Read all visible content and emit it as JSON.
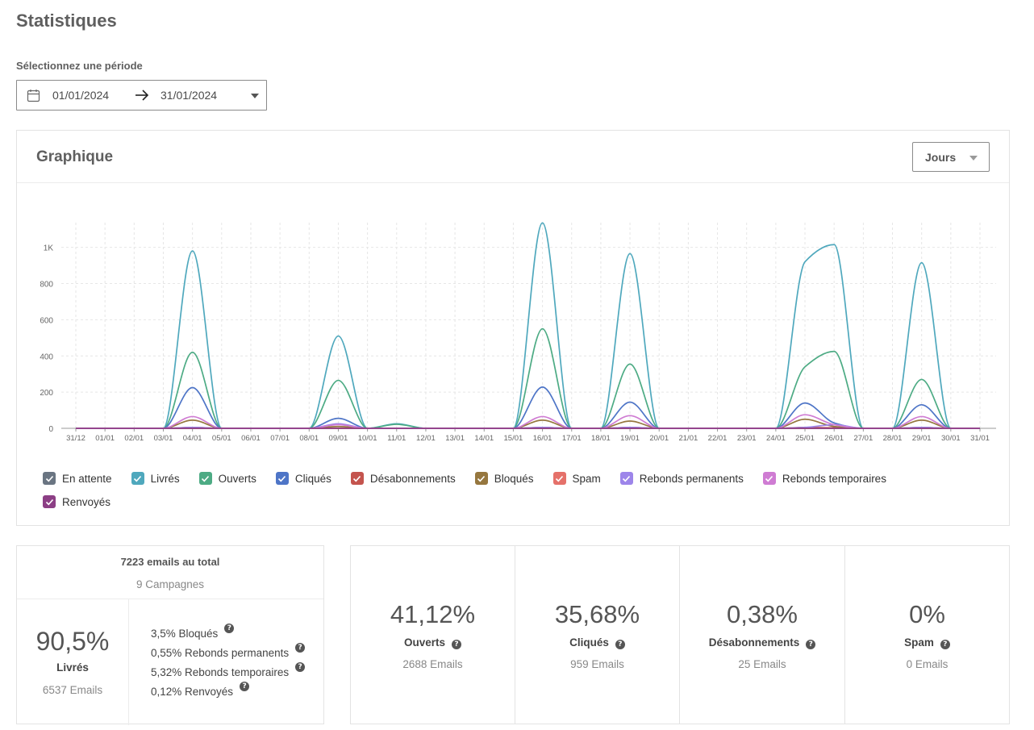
{
  "page": {
    "title": "Statistiques"
  },
  "period": {
    "label": "Sélectionnez une période",
    "start": "01/01/2024",
    "end": "31/01/2024"
  },
  "chart_card": {
    "title": "Graphique",
    "granularity": "Jours"
  },
  "chart_data": {
    "type": "line",
    "categories": [
      "31/12",
      "01/01",
      "02/01",
      "03/01",
      "04/01",
      "05/01",
      "06/01",
      "07/01",
      "08/01",
      "09/01",
      "10/01",
      "11/01",
      "12/01",
      "13/01",
      "14/01",
      "15/01",
      "16/01",
      "17/01",
      "18/01",
      "19/01",
      "20/01",
      "21/01",
      "22/01",
      "23/01",
      "24/01",
      "25/01",
      "26/01",
      "27/01",
      "28/01",
      "29/01",
      "30/01",
      "31/01"
    ],
    "y_ticks": [
      {
        "value": 0,
        "label": "0"
      },
      {
        "value": 200,
        "label": "200"
      },
      {
        "value": 400,
        "label": "400"
      },
      {
        "value": 600,
        "label": "600"
      },
      {
        "value": 800,
        "label": "800"
      },
      {
        "value": 1000,
        "label": "1K"
      }
    ],
    "ylim": [
      0,
      1150
    ],
    "grid": true,
    "legend_position": "bottom",
    "series": [
      {
        "name": "En attente",
        "color": "#6a7582",
        "values": [
          0,
          0,
          0,
          0,
          0,
          0,
          0,
          0,
          0,
          0,
          0,
          0,
          0,
          0,
          0,
          0,
          0,
          0,
          0,
          0,
          0,
          0,
          0,
          0,
          0,
          0,
          0,
          0,
          0,
          0,
          0,
          0
        ]
      },
      {
        "name": "Livrés",
        "color": "#4fa8bd",
        "values": [
          0,
          0,
          0,
          0,
          980,
          0,
          0,
          0,
          0,
          510,
          0,
          25,
          0,
          0,
          0,
          0,
          1135,
          0,
          0,
          965,
          0,
          0,
          0,
          0,
          0,
          920,
          1015,
          0,
          0,
          915,
          0,
          0
        ]
      },
      {
        "name": "Ouverts",
        "color": "#4dab84",
        "values": [
          0,
          0,
          0,
          0,
          420,
          0,
          0,
          0,
          0,
          265,
          0,
          22,
          0,
          0,
          0,
          0,
          550,
          0,
          0,
          355,
          0,
          0,
          0,
          0,
          0,
          340,
          425,
          0,
          0,
          270,
          0,
          0
        ]
      },
      {
        "name": "Cliqués",
        "color": "#4e75c7",
        "values": [
          0,
          0,
          0,
          0,
          225,
          0,
          0,
          0,
          0,
          55,
          0,
          0,
          0,
          0,
          0,
          0,
          228,
          0,
          0,
          145,
          0,
          0,
          0,
          0,
          0,
          140,
          30,
          0,
          0,
          130,
          0,
          0
        ]
      },
      {
        "name": "Désabonnements",
        "color": "#c4544e",
        "values": [
          0,
          0,
          0,
          0,
          5,
          0,
          0,
          0,
          0,
          0,
          0,
          0,
          0,
          0,
          0,
          0,
          5,
          0,
          0,
          5,
          0,
          0,
          0,
          0,
          0,
          5,
          3,
          0,
          0,
          5,
          0,
          0
        ]
      },
      {
        "name": "Bloqués",
        "color": "#96773f",
        "values": [
          0,
          0,
          0,
          0,
          45,
          0,
          0,
          0,
          0,
          10,
          0,
          0,
          0,
          0,
          0,
          0,
          45,
          0,
          0,
          40,
          0,
          0,
          0,
          0,
          0,
          50,
          10,
          0,
          0,
          45,
          0,
          0
        ]
      },
      {
        "name": "Spam",
        "color": "#e5716a",
        "values": [
          0,
          0,
          0,
          0,
          0,
          0,
          0,
          0,
          0,
          0,
          0,
          0,
          0,
          0,
          0,
          0,
          0,
          0,
          0,
          0,
          0,
          0,
          0,
          0,
          0,
          0,
          0,
          0,
          0,
          0,
          0,
          0
        ]
      },
      {
        "name": "Rebonds permanents",
        "color": "#9d85ea",
        "values": [
          0,
          0,
          0,
          0,
          5,
          0,
          0,
          0,
          0,
          25,
          0,
          0,
          0,
          0,
          0,
          0,
          5,
          0,
          0,
          5,
          0,
          0,
          0,
          0,
          0,
          5,
          20,
          0,
          0,
          5,
          0,
          0
        ]
      },
      {
        "name": "Rebonds temporaires",
        "color": "#cf7cd3",
        "values": [
          0,
          0,
          0,
          0,
          65,
          0,
          0,
          0,
          0,
          20,
          0,
          0,
          0,
          0,
          0,
          0,
          65,
          0,
          0,
          70,
          0,
          0,
          0,
          0,
          0,
          75,
          20,
          0,
          0,
          65,
          0,
          0
        ]
      },
      {
        "name": "Renvoyés",
        "color": "#8c3f85",
        "values": [
          0,
          0,
          0,
          0,
          0,
          0,
          0,
          0,
          0,
          0,
          0,
          0,
          0,
          0,
          0,
          0,
          0,
          0,
          0,
          0,
          0,
          0,
          0,
          0,
          0,
          0,
          0,
          0,
          0,
          0,
          0,
          0
        ]
      }
    ]
  },
  "totals": {
    "title": "7223 emails au total",
    "campaigns": "9 Campagnes",
    "delivered": {
      "pct": "90,5%",
      "label": "Livrés",
      "count": "6537 Emails"
    },
    "breakdown": [
      "3,5% Bloqués",
      "0,55% Rebonds permanents",
      "5,32% Rebonds temporaires",
      "0,12% Renvoyés"
    ]
  },
  "stats": [
    {
      "value": "41,12%",
      "label": "Ouverts",
      "count": "2688 Emails"
    },
    {
      "value": "35,68%",
      "label": "Cliqués",
      "count": "959 Emails"
    },
    {
      "value": "0,38%",
      "label": "Désabonnements",
      "count": "25 Emails"
    },
    {
      "value": "0%",
      "label": "Spam",
      "count": "0 Emails"
    }
  ]
}
